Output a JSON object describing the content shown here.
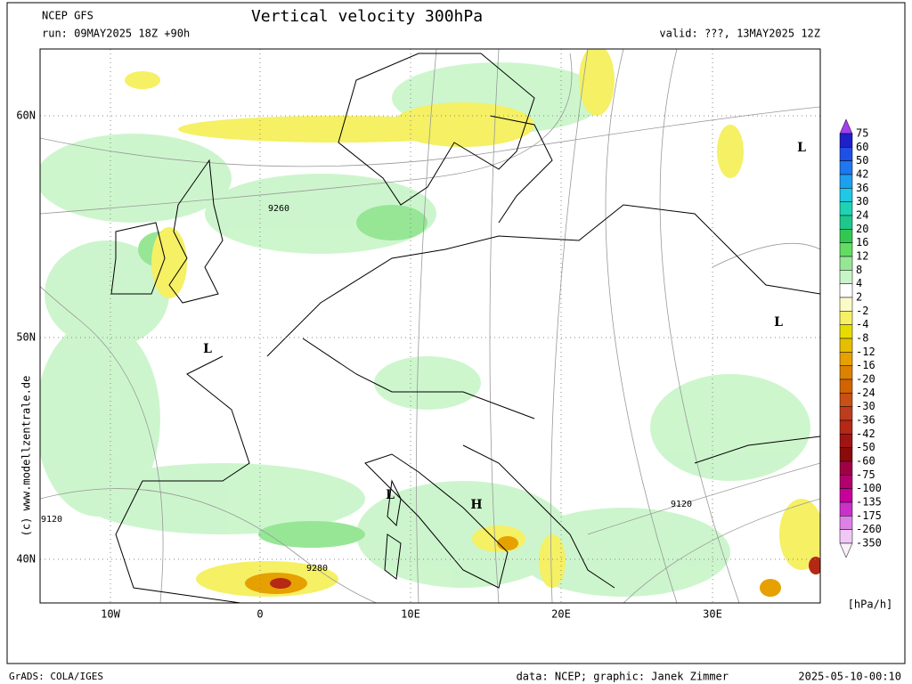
{
  "header": {
    "model": "NCEP GFS",
    "run": "run: 09MAY2025 18Z +90h",
    "title": "Vertical velocity 300hPa",
    "valid": "valid: ???, 13MAY2025 12Z"
  },
  "map": {
    "lon_labels": [
      "10W",
      "0",
      "10E",
      "20E",
      "30E"
    ],
    "lat_labels": [
      "60N",
      "50N",
      "40N"
    ],
    "pressure_labels": [
      "L",
      "L",
      "L",
      "L",
      "H"
    ],
    "contour_labels": [
      "9260",
      "9120",
      "9120",
      "9280"
    ],
    "watermark": "(c) www.modellzentrale.de"
  },
  "legend": {
    "labels": [
      75,
      60,
      50,
      42,
      36,
      30,
      24,
      20,
      16,
      12,
      8,
      4,
      2,
      -2,
      -4,
      -8,
      -12,
      -16,
      -20,
      -24,
      -30,
      -36,
      -42,
      -50,
      -60,
      -75,
      -100,
      -135,
      -175,
      -260,
      -350
    ],
    "colors": [
      "#a040f0",
      "#2020c8",
      "#1e50e6",
      "#1e78f0",
      "#1ea0f0",
      "#1ec8e6",
      "#1ed2b4",
      "#1ec88c",
      "#32c850",
      "#64dc64",
      "#96e696",
      "#c8f5c8",
      "#ffffff",
      "#fafac8",
      "#f5f064",
      "#e6dc00",
      "#e6be00",
      "#e6a000",
      "#dc8200",
      "#d26400",
      "#c85014",
      "#be3c1e",
      "#b42814",
      "#a01414",
      "#8c0a0a",
      "#a00046",
      "#b4006e",
      "#c8009b",
      "#c832c8",
      "#dc82e6",
      "#f0c8f5",
      "#faf0fa"
    ],
    "unit": "[hPa/h]"
  },
  "footer": {
    "software": "GrADS: COLA/IGES",
    "credit": "data: NCEP; graphic: Janek Zimmer",
    "timestamp": "2025-05-10-00:10"
  }
}
